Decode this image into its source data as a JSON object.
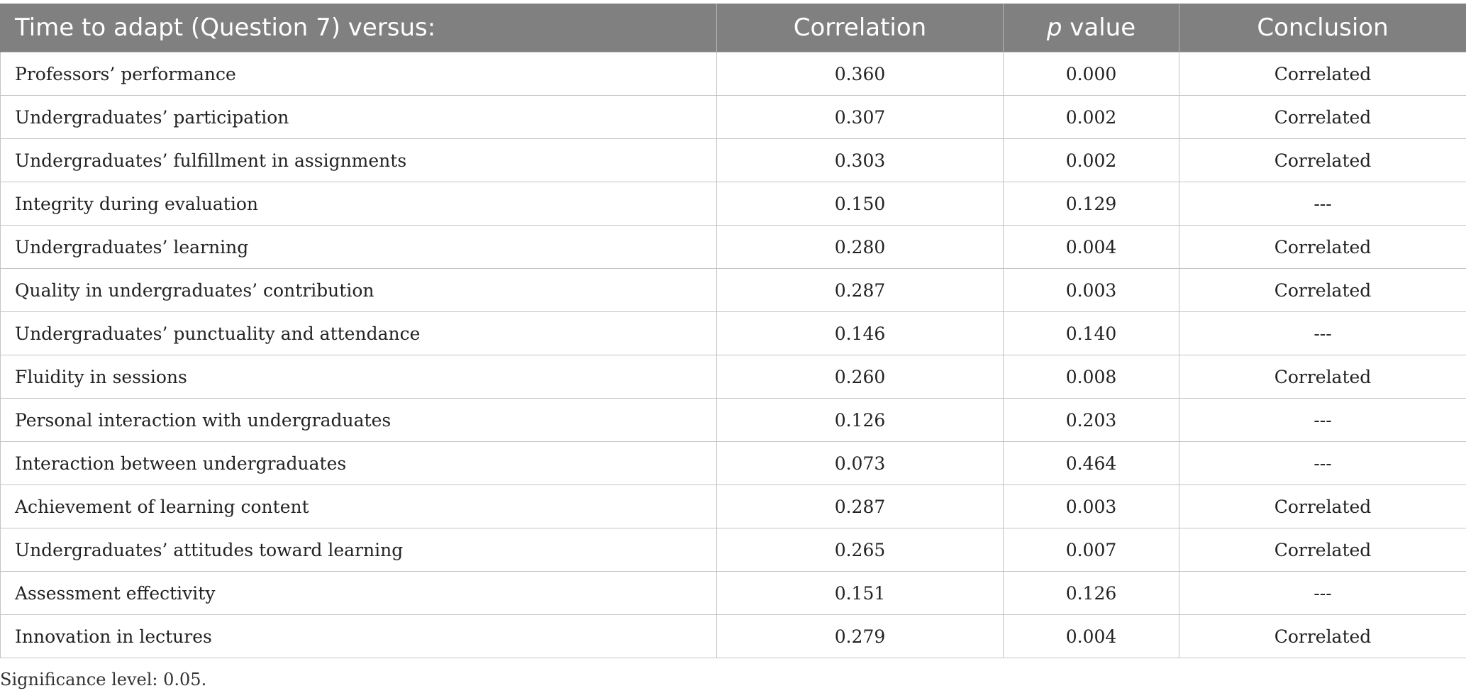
{
  "table": {
    "headers": {
      "col1": "Time to adapt (Question 7) versus:",
      "col2": "Correlation",
      "col3_italic": "p",
      "col3_rest": " value",
      "col4": "Conclusion"
    },
    "rows": [
      {
        "item": "Professors’ performance",
        "correlation": "0.360",
        "p_value": "0.000",
        "conclusion": "Correlated"
      },
      {
        "item": "Undergraduates’ participation",
        "correlation": "0.307",
        "p_value": "0.002",
        "conclusion": "Correlated"
      },
      {
        "item": "Undergraduates’ fulfillment in assignments",
        "correlation": "0.303",
        "p_value": "0.002",
        "conclusion": "Correlated"
      },
      {
        "item": "Integrity during evaluation",
        "correlation": "0.150",
        "p_value": "0.129",
        "conclusion": "---"
      },
      {
        "item": "Undergraduates’ learning",
        "correlation": "0.280",
        "p_value": "0.004",
        "conclusion": "Correlated"
      },
      {
        "item": "Quality in undergraduates’ contribution",
        "correlation": "0.287",
        "p_value": "0.003",
        "conclusion": "Correlated"
      },
      {
        "item": "Undergraduates’ punctuality and attendance",
        "correlation": "0.146",
        "p_value": "0.140",
        "conclusion": "---"
      },
      {
        "item": "Fluidity in sessions",
        "correlation": "0.260",
        "p_value": "0.008",
        "conclusion": "Correlated"
      },
      {
        "item": "Personal interaction with undergraduates",
        "correlation": "0.126",
        "p_value": "0.203",
        "conclusion": "---"
      },
      {
        "item": "Interaction between undergraduates",
        "correlation": "0.073",
        "p_value": "0.464",
        "conclusion": "---"
      },
      {
        "item": "Achievement of learning content",
        "correlation": "0.287",
        "p_value": "0.003",
        "conclusion": "Correlated"
      },
      {
        "item": "Undergraduates’ attitudes toward learning",
        "correlation": "0.265",
        "p_value": "0.007",
        "conclusion": "Correlated"
      },
      {
        "item": "Assessment effectivity",
        "correlation": "0.151",
        "p_value": "0.126",
        "conclusion": "---"
      },
      {
        "item": "Innovation in lectures",
        "correlation": "0.279",
        "p_value": "0.004",
        "conclusion": "Correlated"
      }
    ]
  },
  "footnote": "Significance level: 0.05.",
  "colors": {
    "header_bg": "#808080",
    "header_text": "#ffffff",
    "grid": "#c4c4c4"
  }
}
